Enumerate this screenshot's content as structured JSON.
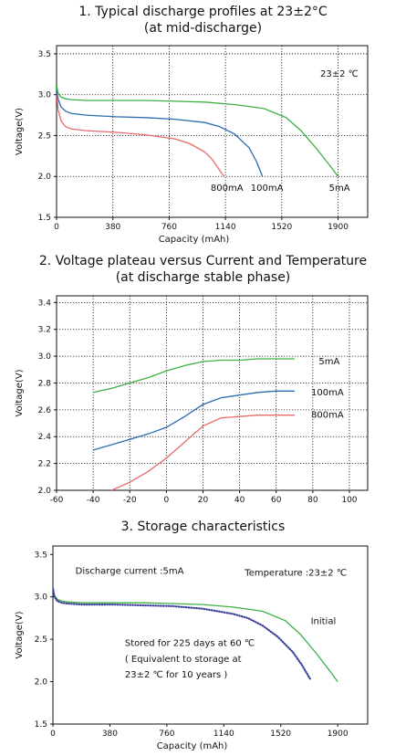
{
  "chart_data": [
    {
      "type": "line",
      "title": "1. Typical discharge profiles at 23±2°C",
      "subtitle": "(at mid-discharge)",
      "xlabel": "Capacity (mAh)",
      "ylabel": "Voltage(V)",
      "xlim": [
        0,
        2100
      ],
      "ylim": [
        1.5,
        3.6
      ],
      "xticks": [
        "0",
        "380",
        "760",
        "1140",
        "1520",
        "1900"
      ],
      "xtick_values": [
        0,
        380,
        760,
        1140,
        1520,
        1900
      ],
      "yticks": [
        "1.5",
        "2.0",
        "2.5",
        "3.0",
        "3.5"
      ],
      "ytick_values": [
        1.5,
        2.0,
        2.5,
        3.0,
        3.5
      ],
      "grid": true,
      "annotations": [
        {
          "text": "23±2 ℃",
          "x": 1780,
          "y": 3.22
        }
      ],
      "series": [
        {
          "name": "800mA",
          "color": "#e86a6a",
          "label_at": [
            1150,
            1.86
          ],
          "x": [
            0,
            10,
            30,
            60,
            100,
            200,
            400,
            600,
            800,
            900,
            1000,
            1050,
            1100,
            1130
          ],
          "y": [
            3.05,
            2.82,
            2.68,
            2.61,
            2.58,
            2.56,
            2.54,
            2.51,
            2.46,
            2.4,
            2.3,
            2.21,
            2.08,
            2.0
          ]
        },
        {
          "name": "100mA",
          "color": "#2b6cb0",
          "label_at": [
            1420,
            1.86
          ],
          "x": [
            0,
            10,
            30,
            60,
            100,
            200,
            400,
            600,
            800,
            1000,
            1100,
            1200,
            1300,
            1350,
            1390
          ],
          "y": [
            3.08,
            2.95,
            2.85,
            2.8,
            2.77,
            2.75,
            2.73,
            2.72,
            2.7,
            2.66,
            2.61,
            2.52,
            2.35,
            2.18,
            2.0
          ]
        },
        {
          "name": "5mA",
          "color": "#3cb043",
          "label_at": [
            1910,
            1.86
          ],
          "x": [
            0,
            10,
            30,
            60,
            100,
            200,
            400,
            600,
            800,
            1000,
            1200,
            1400,
            1550,
            1650,
            1750,
            1850,
            1900
          ],
          "y": [
            3.12,
            3.02,
            2.97,
            2.95,
            2.94,
            2.93,
            2.93,
            2.93,
            2.92,
            2.91,
            2.88,
            2.83,
            2.72,
            2.56,
            2.35,
            2.12,
            2.0
          ]
        }
      ]
    },
    {
      "type": "line",
      "title": "2. Voltage plateau versus Current and Temperature",
      "subtitle": "(at discharge stable phase)",
      "xlabel": "Temperature( ℃)",
      "ylabel": "Voltage(V)",
      "xlim": [
        -60,
        110
      ],
      "ylim": [
        2.0,
        3.45
      ],
      "xticks": [
        "-60",
        "-40",
        "-20",
        "0",
        "20",
        "40",
        "60",
        "80",
        "100"
      ],
      "xtick_values": [
        -60,
        -40,
        -20,
        0,
        20,
        40,
        60,
        80,
        100
      ],
      "yticks": [
        "2.0",
        "2.2",
        "2.4",
        "2.6",
        "2.8",
        "3.0",
        "3.2",
        "3.4"
      ],
      "ytick_values": [
        2.0,
        2.2,
        2.4,
        2.6,
        2.8,
        3.0,
        3.2,
        3.4
      ],
      "grid": true,
      "series": [
        {
          "name": "5mA",
          "color": "#3cb043",
          "label_at": [
            89,
            2.96
          ],
          "x": [
            -40,
            -30,
            -20,
            -10,
            0,
            10,
            20,
            30,
            40,
            50,
            60,
            70
          ],
          "y": [
            2.73,
            2.76,
            2.8,
            2.84,
            2.89,
            2.93,
            2.96,
            2.97,
            2.97,
            2.98,
            2.98,
            2.98
          ]
        },
        {
          "name": "100mA",
          "color": "#2b6cb0",
          "label_at": [
            88,
            2.73
          ],
          "x": [
            -40,
            -30,
            -20,
            -10,
            0,
            10,
            20,
            30,
            40,
            50,
            60,
            70
          ],
          "y": [
            2.3,
            2.34,
            2.38,
            2.42,
            2.47,
            2.55,
            2.64,
            2.69,
            2.71,
            2.73,
            2.74,
            2.74
          ]
        },
        {
          "name": "800mA",
          "color": "#e86a6a",
          "label_at": [
            88,
            2.56
          ],
          "x": [
            -30,
            -20,
            -10,
            0,
            10,
            20,
            30,
            40,
            50,
            60,
            70
          ],
          "y": [
            2.0,
            2.06,
            2.14,
            2.24,
            2.36,
            2.48,
            2.54,
            2.55,
            2.56,
            2.56,
            2.56
          ]
        }
      ]
    },
    {
      "type": "line",
      "title": "3. Storage characteristics",
      "xlabel": "Capacity (mAh)",
      "ylabel": "Voltage(V)",
      "xlim": [
        0,
        2100
      ],
      "ylim": [
        1.5,
        3.6
      ],
      "xticks": [
        "0",
        "380",
        "760",
        "1140",
        "1520",
        "1900"
      ],
      "xtick_values": [
        0,
        380,
        760,
        1140,
        1520,
        1900
      ],
      "yticks": [
        "1.5",
        "2.0",
        "2.5",
        "3.0",
        "3.5"
      ],
      "ytick_values": [
        1.5,
        2.0,
        2.5,
        3.0,
        3.5
      ],
      "grid": false,
      "annotations": [
        {
          "text": "Discharge current  :5mA",
          "x": 150,
          "y": 3.27
        },
        {
          "text": "Temperature :23±2 ℃",
          "x": 1280,
          "y": 3.25
        },
        {
          "text": "Initial",
          "x": 1720,
          "y": 2.68
        },
        {
          "text": "Stored for 225 days at 60  ℃",
          "x": 480,
          "y": 2.42
        },
        {
          "text": "( Equivalent to storage at",
          "x": 480,
          "y": 2.23
        },
        {
          "text": "23±2 ℃ for 10 years   )",
          "x": 480,
          "y": 2.05
        }
      ],
      "series": [
        {
          "name": "Initial",
          "color": "#3cb043",
          "style": "solid",
          "x": [
            0,
            10,
            30,
            60,
            100,
            200,
            400,
            600,
            800,
            1000,
            1200,
            1400,
            1550,
            1650,
            1750,
            1850,
            1900
          ],
          "y": [
            3.12,
            3.02,
            2.97,
            2.95,
            2.94,
            2.93,
            2.93,
            2.93,
            2.92,
            2.91,
            2.88,
            2.83,
            2.72,
            2.56,
            2.35,
            2.12,
            2.0
          ]
        },
        {
          "name": "Stored for 225 days at 60 ℃",
          "color": "#3a3f9a",
          "style": "dotted",
          "x": [
            0,
            10,
            30,
            60,
            100,
            200,
            400,
            600,
            800,
            1000,
            1200,
            1300,
            1400,
            1500,
            1600,
            1660,
            1720
          ],
          "y": [
            3.1,
            3.0,
            2.95,
            2.93,
            2.92,
            2.91,
            2.91,
            2.9,
            2.89,
            2.86,
            2.8,
            2.75,
            2.66,
            2.53,
            2.35,
            2.2,
            2.02
          ]
        }
      ]
    }
  ]
}
